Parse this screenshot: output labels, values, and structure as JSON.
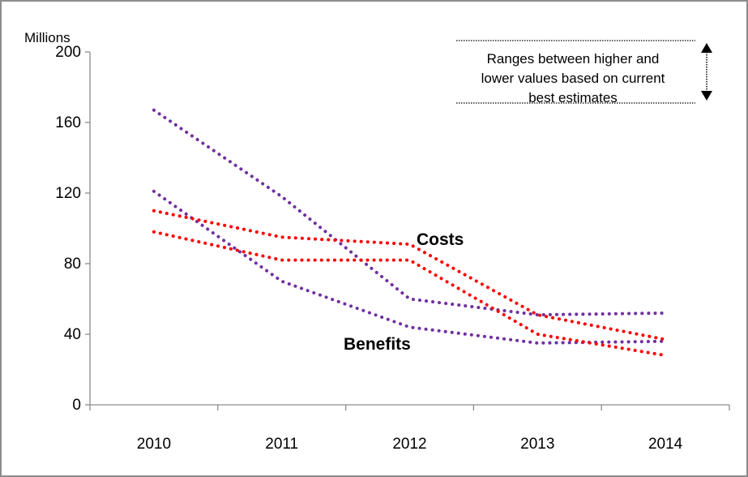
{
  "chart_data": {
    "type": "line",
    "ylabel": "Millions",
    "ylim": [
      0,
      200
    ],
    "yticks": [
      0,
      40,
      80,
      120,
      160,
      200
    ],
    "categories": [
      "2010",
      "2011",
      "2012",
      "2013",
      "2014"
    ],
    "grid": false,
    "series": [
      {
        "name": "Benefits",
        "color": "#7030a0",
        "values": [
          167,
          118,
          60,
          51,
          52
        ]
      },
      {
        "name": "Benefits",
        "color": "#7030a0",
        "values": [
          121,
          70,
          44,
          35,
          36
        ]
      },
      {
        "name": "Costs",
        "color": "#ff0000",
        "values": [
          110,
          95,
          91,
          51,
          37
        ]
      },
      {
        "name": "Costs",
        "color": "#ff0000",
        "values": [
          98,
          82,
          82,
          40,
          28
        ]
      }
    ],
    "annotations": {
      "costs_label": "Costs",
      "benefits_label": "Benefits",
      "range_note_lines": [
        "Ranges between higher and",
        "lower values based on current",
        "best estimates"
      ]
    }
  }
}
